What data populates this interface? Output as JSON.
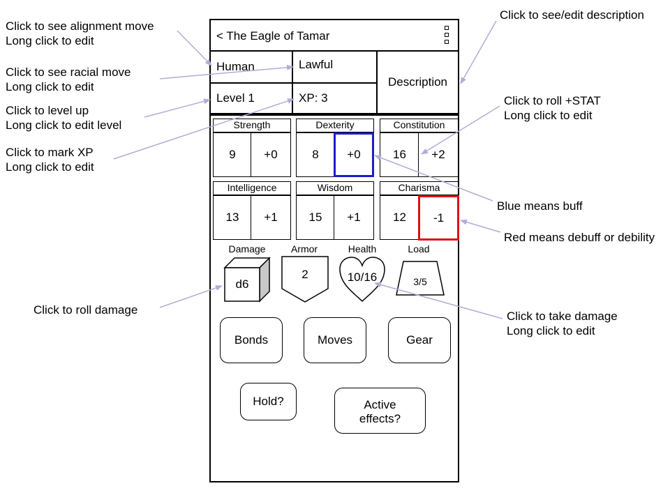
{
  "header": {
    "title": "< The Eagle of Tamar",
    "menu_icon": "kebab-menu-icon"
  },
  "info": {
    "race": "Human",
    "alignment": "Lawful",
    "level": "Level 1",
    "xp": "XP: 3",
    "description": "Description"
  },
  "stats": [
    {
      "name": "Strength",
      "value": "9",
      "mod": "+0",
      "state": "normal"
    },
    {
      "name": "Dexterity",
      "value": "8",
      "mod": "+0",
      "state": "buff"
    },
    {
      "name": "Constitution",
      "value": "16",
      "mod": "+2",
      "state": "normal"
    },
    {
      "name": "Intelligence",
      "value": "13",
      "mod": "+1",
      "state": "normal"
    },
    {
      "name": "Wisdom",
      "value": "15",
      "mod": "+1",
      "state": "normal"
    },
    {
      "name": "Charisma",
      "value": "12",
      "mod": "-1",
      "state": "debuff"
    }
  ],
  "resources": {
    "damage_label": "Damage",
    "damage_value": "d6",
    "armor_label": "Armor",
    "armor_value": "2",
    "health_label": "Health",
    "health_value": "10/16",
    "load_label": "Load",
    "load_value": "3/5"
  },
  "buttons": {
    "bonds": "Bonds",
    "moves": "Moves",
    "gear": "Gear",
    "hold": "Hold?",
    "active_line1": "Active",
    "active_line2": "effects?"
  },
  "annotations": {
    "alignment": [
      "Click to see alignment move",
      "Long click to edit"
    ],
    "racial": [
      "Click to see racial move",
      "Long click to edit"
    ],
    "level": [
      "Click to level up",
      "Long click to edit level"
    ],
    "xp": [
      "Click to mark XP",
      "Long click to edit"
    ],
    "description": [
      "Click to see/edit description"
    ],
    "roll_stat": [
      "Click to roll +STAT",
      "Long click to edit"
    ],
    "buff": [
      "Blue means buff"
    ],
    "debuff": [
      "Red means debuff or debility"
    ],
    "damage": [
      "Click to roll damage"
    ],
    "health": [
      "Click to take damage",
      "Long click to edit"
    ]
  },
  "colors": {
    "buff": "#1c1ccc",
    "debuff": "#dd1111",
    "arrow": "#b3acd6"
  }
}
